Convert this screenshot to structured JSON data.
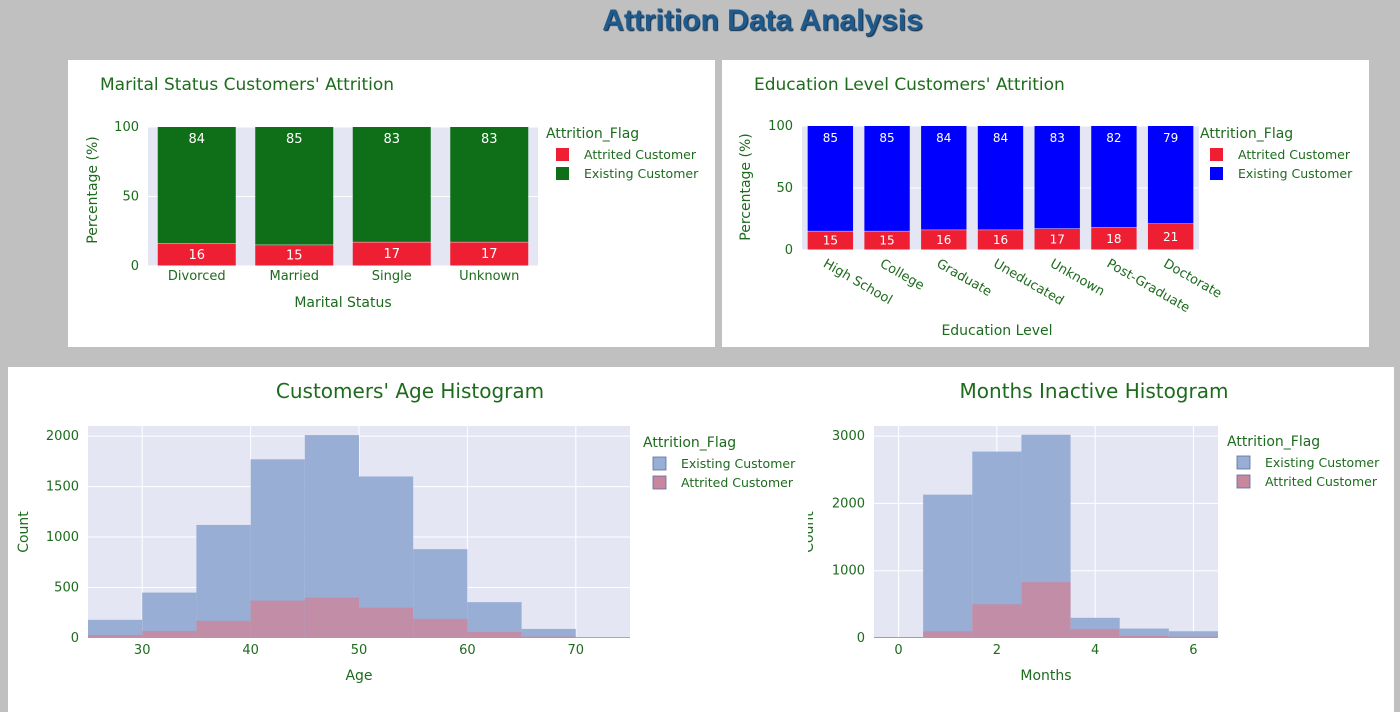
{
  "page": {
    "title": "Attrition Data Analysis"
  },
  "colors": {
    "page_bg": "#c0c0c0",
    "title": "#1f5a8c",
    "plot_bg": "#e5e6f4",
    "text_green": "#1d6b1d",
    "attrited": "#ef1f33",
    "existing_green": "#0f6f18",
    "existing_blue": "#0000ff",
    "hist_existing": "#98aed4",
    "hist_attrited": "#c9879e"
  },
  "chart_data": [
    {
      "id": "marital",
      "type": "bar",
      "stacked": true,
      "title": "Marital Status Customers' Attrition",
      "xlabel": "Marital Status",
      "ylabel": "Percentage (%)",
      "ylim": [
        0,
        100
      ],
      "yticks": [
        "0",
        "50",
        "100"
      ],
      "categories": [
        "Divorced",
        "Married",
        "Single",
        "Unknown"
      ],
      "legend_title": "Attrition_Flag",
      "legend_position": "right",
      "series": [
        {
          "name": "Attrited Customer",
          "color": "#ef1f33",
          "values": [
            16,
            15,
            17,
            17
          ],
          "labels": [
            "16",
            "15",
            "17",
            "17"
          ]
        },
        {
          "name": "Existing Customer",
          "color": "#0f6f18",
          "values": [
            84,
            85,
            83,
            83
          ],
          "labels": [
            "84",
            "85",
            "83",
            "83"
          ]
        }
      ]
    },
    {
      "id": "education",
      "type": "bar",
      "stacked": true,
      "title": "Education Level Customers' Attrition",
      "xlabel": "Education Level",
      "ylabel": "Percentage (%)",
      "ylim": [
        0,
        100
      ],
      "yticks": [
        "0",
        "50",
        "100"
      ],
      "categories": [
        "High School",
        "College",
        "Graduate",
        "Uneducated",
        "Unknown",
        "Post-Graduate",
        "Doctorate"
      ],
      "legend_title": "Attrition_Flag",
      "legend_position": "right",
      "series": [
        {
          "name": "Attrited Customer",
          "color": "#ef1f33",
          "values": [
            15,
            15,
            16,
            16,
            17,
            18,
            21
          ],
          "labels": [
            "15",
            "15",
            "16",
            "16",
            "17",
            "18",
            "21"
          ]
        },
        {
          "name": "Existing Customer",
          "color": "#0000ff",
          "values": [
            85,
            85,
            84,
            84,
            83,
            82,
            79
          ],
          "labels": [
            "85",
            "85",
            "84",
            "84",
            "83",
            "82",
            "79"
          ]
        }
      ]
    },
    {
      "id": "age",
      "type": "histogram",
      "overlay": true,
      "title": "Customers' Age Histogram",
      "xlabel": "Age",
      "ylabel": "Count",
      "xlim": [
        25,
        75
      ],
      "ylim": [
        0,
        2100
      ],
      "xticks": [
        30,
        40,
        50,
        60,
        70
      ],
      "xtick_labels": [
        "30",
        "40",
        "50",
        "60",
        "70"
      ],
      "yticks": [
        0,
        500,
        1000,
        1500,
        2000
      ],
      "ytick_labels": [
        "0",
        "500",
        "1000",
        "1500",
        "2000"
      ],
      "bin_edges": [
        25,
        30,
        35,
        40,
        45,
        50,
        55,
        60,
        65,
        70,
        75
      ],
      "legend_title": "Attrition_Flag",
      "legend_position": "right",
      "series": [
        {
          "name": "Existing Customer",
          "color": "#98aed4",
          "values": [
            180,
            450,
            1120,
            1770,
            2010,
            1600,
            880,
            355,
            90,
            10
          ]
        },
        {
          "name": "Attrited Customer",
          "color": "#c9879e",
          "values": [
            30,
            70,
            170,
            370,
            400,
            300,
            190,
            60,
            15,
            2
          ]
        }
      ]
    },
    {
      "id": "months",
      "type": "histogram",
      "overlay": true,
      "title": "Months Inactive Histogram",
      "xlabel": "Months",
      "ylabel": "Count",
      "xlim": [
        -0.5,
        6.5
      ],
      "ylim": [
        0,
        3150
      ],
      "xticks": [
        0,
        2,
        4,
        6
      ],
      "xtick_labels": [
        "0",
        "2",
        "4",
        "6"
      ],
      "yticks": [
        0,
        1000,
        2000,
        3000
      ],
      "ytick_labels": [
        "0",
        "1000",
        "2000",
        "3000"
      ],
      "bin_edges": [
        -0.5,
        0.5,
        1.5,
        2.5,
        3.5,
        4.5,
        5.5,
        6.5
      ],
      "legend_title": "Attrition_Flag",
      "legend_position": "right",
      "series": [
        {
          "name": "Existing Customer",
          "color": "#98aed4",
          "values": [
            15,
            2130,
            2770,
            3020,
            300,
            140,
            100
          ]
        },
        {
          "name": "Attrited Customer",
          "color": "#c9879e",
          "values": [
            15,
            100,
            500,
            830,
            130,
            30,
            20
          ]
        }
      ]
    }
  ]
}
